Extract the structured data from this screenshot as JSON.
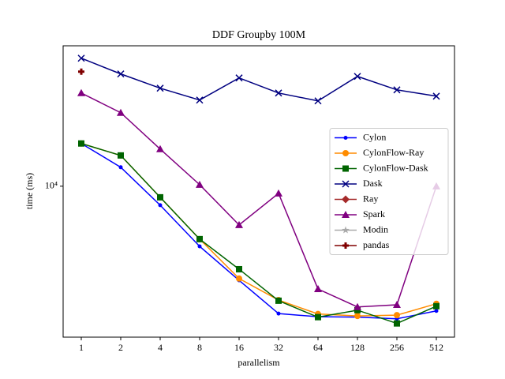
{
  "chart_data": {
    "type": "line",
    "title": "DDF Groupby 100M",
    "x_label": "parallelism",
    "y_label": "time (ms)",
    "categories": [
      "1",
      "2",
      "4",
      "8",
      "16",
      "32",
      "64",
      "128",
      "256",
      "512"
    ],
    "yscale": "log",
    "ylim": [
      1600,
      55000
    ],
    "yticks": [
      {
        "value": 10000,
        "label": "10⁴"
      }
    ],
    "grid": false,
    "legend": "center right",
    "series": [
      {
        "name": "Cylon",
        "color": "#0000ff",
        "marker": "dot",
        "values": [
          16800,
          12590,
          7940,
          4820,
          3190,
          2130,
          2050,
          2040,
          2000,
          2200
        ]
      },
      {
        "name": "CylonFlow-Ray",
        "color": "#ff8c00",
        "marker": "circle",
        "values": [
          16800,
          14530,
          8740,
          5260,
          3260,
          2510,
          2120,
          2070,
          2090,
          2400
        ]
      },
      {
        "name": "CylonFlow-Dask",
        "color": "#006400",
        "marker": "square",
        "values": [
          16800,
          14530,
          8740,
          5260,
          3650,
          2490,
          2040,
          2220,
          1890,
          2330
        ]
      },
      {
        "name": "Dask",
        "color": "#000080",
        "marker": "x",
        "values": [
          47300,
          39090,
          32880,
          28460,
          37230,
          31000,
          28180,
          37940,
          32210,
          29840
        ]
      },
      {
        "name": "Ray",
        "color": "#a52a2a",
        "marker": "diamond",
        "values": [
          null,
          null,
          null,
          null,
          null,
          null,
          null,
          null,
          null,
          null
        ]
      },
      {
        "name": "Spark",
        "color": "#800080",
        "marker": "triangle",
        "values": [
          31000,
          24410,
          15700,
          10190,
          6250,
          9170,
          2870,
          2310,
          2370,
          10000
        ]
      },
      {
        "name": "Modin",
        "color": "#a9a9a9",
        "marker": "star",
        "values": [
          null,
          null,
          null,
          null,
          null,
          null,
          null,
          null,
          null,
          null
        ]
      },
      {
        "name": "pandas",
        "color": "#800000",
        "marker": "plus",
        "values": [
          40160,
          null,
          null,
          null,
          null,
          null,
          null,
          null,
          null,
          null
        ]
      }
    ]
  }
}
